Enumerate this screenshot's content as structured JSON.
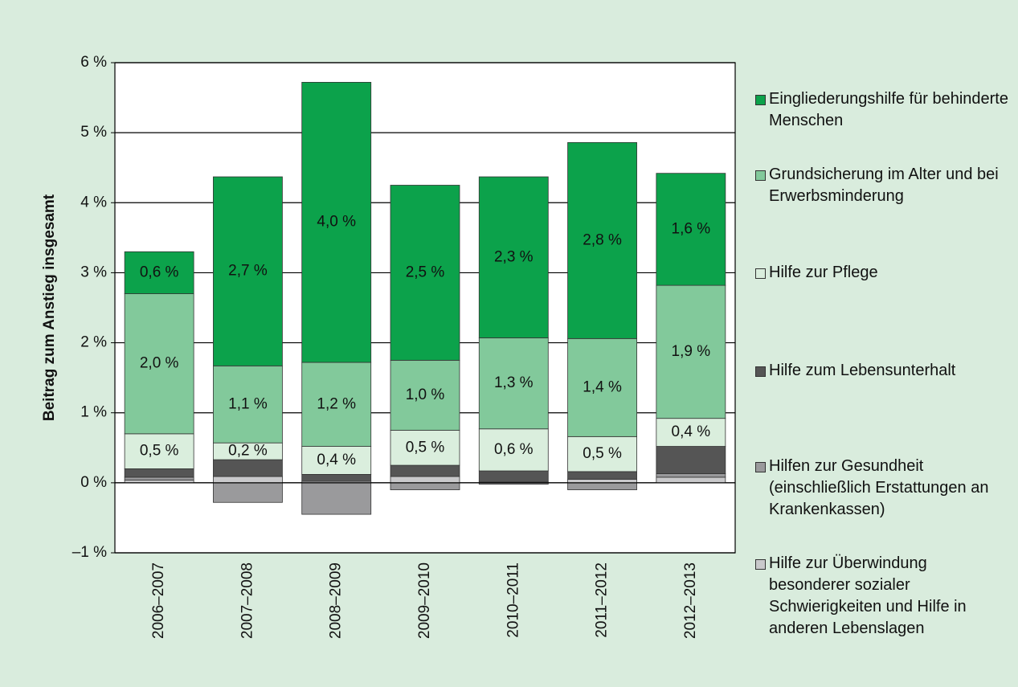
{
  "chart_data": {
    "type": "stacked-bar",
    "y_label": "Beitrag zum Anstieg insgesamt",
    "categories": [
      "2006–2007",
      "2007–2008",
      "2008–2009",
      "2009–2010",
      "2010–2011",
      "2011–2012",
      "2012–2013"
    ],
    "ylim": [
      -1,
      6
    ],
    "yticks": [
      {
        "value": -1,
        "label": "–1 %"
      },
      {
        "value": 0,
        "label": "0 %"
      },
      {
        "value": 1,
        "label": "1 %"
      },
      {
        "value": 2,
        "label": "2 %"
      },
      {
        "value": 3,
        "label": "3 %"
      },
      {
        "value": 4,
        "label": "4 %"
      },
      {
        "value": 5,
        "label": "5 %"
      },
      {
        "value": 6,
        "label": "6 %"
      }
    ],
    "grid": true,
    "legend": "right",
    "series": [
      {
        "name": "Eingliederungshilfe für behinderte Menschen",
        "color": "#0ca24b",
        "values": [
          0.6,
          2.7,
          4.0,
          2.5,
          2.3,
          2.8,
          1.6
        ],
        "value_labels": [
          "0,6 %",
          "2,7 %",
          "4,0 %",
          "2,5 %",
          "2,3 %",
          "2,8 %",
          "1,6 %"
        ]
      },
      {
        "name": "Grundsicherung im Alter und bei Erwerbsminderung",
        "color": "#82c99b",
        "values": [
          2.0,
          1.1,
          1.2,
          1.0,
          1.3,
          1.4,
          1.9
        ],
        "value_labels": [
          "2,0 %",
          "1,1 %",
          "1,2 %",
          "1,0 %",
          "1,3 %",
          "1,4 %",
          "1,9 %"
        ]
      },
      {
        "name": "Hilfe zur Pflege",
        "color": "#daeedd",
        "values": [
          0.5,
          0.24,
          0.4,
          0.5,
          0.6,
          0.5,
          0.4
        ],
        "value_labels": [
          "0,5 %",
          "0,2 %",
          "0,4 %",
          "0,5 %",
          "0,6 %",
          "0,5 %",
          "0,4 %"
        ]
      },
      {
        "name": "Hilfe zum Lebensunterhalt",
        "color": "#555555",
        "values": [
          0.12,
          0.24,
          0.1,
          0.16,
          0.16,
          0.11,
          0.39
        ]
      },
      {
        "name": "Hilfen zur Gesundheit (einschließlich Erstattungen an Krankenkassen)",
        "color": "#9a9a9c",
        "values": [
          0.04,
          -0.28,
          -0.45,
          -0.1,
          -0.02,
          -0.1,
          0.05
        ]
      },
      {
        "name": "Hilfe zur Überwindung besonderer sozialer Schwierigkeiten und Hilfe in anderen Lebenslagen",
        "color": "#c9c9cb",
        "values": [
          0.04,
          0.09,
          0.02,
          0.09,
          0.01,
          0.05,
          0.08
        ]
      }
    ]
  }
}
